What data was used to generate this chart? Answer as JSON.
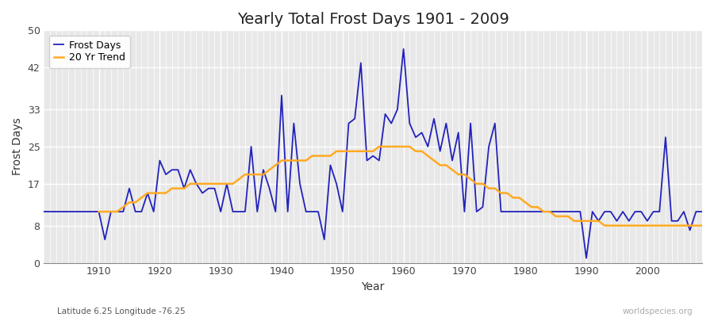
{
  "title": "Yearly Total Frost Days 1901 - 2009",
  "xlabel": "Year",
  "ylabel": "Frost Days",
  "bottom_left_label": "Latitude 6.25 Longitude -76.25",
  "bottom_right_label": "worldspecies.org",
  "ylim": [
    0,
    50
  ],
  "yticks": [
    0,
    8,
    17,
    25,
    33,
    42,
    50
  ],
  "xlim": [
    1901,
    2009
  ],
  "bg_color": "#e8e8e8",
  "fig_color": "#ffffff",
  "line_color_frost": "#2222bb",
  "line_color_trend": "#ffaa22",
  "years": [
    1901,
    1902,
    1903,
    1904,
    1905,
    1906,
    1907,
    1908,
    1909,
    1910,
    1911,
    1912,
    1913,
    1914,
    1915,
    1916,
    1917,
    1918,
    1919,
    1920,
    1921,
    1922,
    1923,
    1924,
    1925,
    1926,
    1927,
    1928,
    1929,
    1930,
    1931,
    1932,
    1933,
    1934,
    1935,
    1936,
    1937,
    1938,
    1939,
    1940,
    1941,
    1942,
    1943,
    1944,
    1945,
    1946,
    1947,
    1948,
    1949,
    1950,
    1951,
    1952,
    1953,
    1954,
    1955,
    1956,
    1957,
    1958,
    1959,
    1960,
    1961,
    1962,
    1963,
    1964,
    1965,
    1966,
    1967,
    1968,
    1969,
    1970,
    1971,
    1972,
    1973,
    1974,
    1975,
    1976,
    1977,
    1978,
    1979,
    1980,
    1981,
    1982,
    1983,
    1984,
    1985,
    1986,
    1987,
    1988,
    1989,
    1990,
    1991,
    1992,
    1993,
    1994,
    1995,
    1996,
    1997,
    1998,
    1999,
    2000,
    2001,
    2002,
    2003,
    2004,
    2005,
    2006,
    2007,
    2008,
    2009
  ],
  "frost_days": [
    11,
    11,
    11,
    11,
    11,
    11,
    11,
    11,
    11,
    11,
    5,
    11,
    11,
    11,
    16,
    11,
    11,
    15,
    11,
    22,
    19,
    20,
    20,
    16,
    20,
    17,
    15,
    16,
    16,
    11,
    17,
    11,
    11,
    11,
    25,
    11,
    20,
    16,
    11,
    36,
    11,
    30,
    17,
    11,
    11,
    11,
    5,
    21,
    17,
    11,
    30,
    31,
    43,
    22,
    23,
    22,
    32,
    30,
    33,
    46,
    30,
    27,
    28,
    25,
    31,
    24,
    30,
    22,
    28,
    11,
    30,
    11,
    12,
    25,
    30,
    11,
    11,
    11,
    11,
    11,
    11,
    11,
    11,
    11,
    11,
    11,
    11,
    11,
    11,
    1,
    11,
    9,
    11,
    11,
    9,
    11,
    9,
    11,
    11,
    9,
    11,
    11,
    27,
    9,
    9,
    11,
    7,
    11,
    11
  ],
  "trend_years": [
    1910,
    1911,
    1912,
    1913,
    1914,
    1915,
    1916,
    1917,
    1918,
    1919,
    1920,
    1921,
    1922,
    1923,
    1924,
    1925,
    1926,
    1927,
    1928,
    1929,
    1930,
    1931,
    1932,
    1933,
    1934,
    1935,
    1936,
    1937,
    1938,
    1939,
    1940,
    1941,
    1942,
    1943,
    1944,
    1945,
    1946,
    1947,
    1948,
    1949,
    1950,
    1951,
    1952,
    1953,
    1954,
    1955,
    1956,
    1957,
    1958,
    1959,
    1960,
    1961,
    1962,
    1963,
    1964,
    1965,
    1966,
    1967,
    1968,
    1969,
    1970,
    1971,
    1972,
    1973,
    1974,
    1975,
    1976,
    1977,
    1978,
    1979,
    1980,
    1981,
    1982,
    1983,
    1984,
    1985,
    1986,
    1987,
    1988,
    1989,
    1990,
    1991,
    1992,
    1993,
    1994,
    1995,
    1996,
    1997,
    1998,
    1999,
    2000,
    2001,
    2002,
    2003,
    2004,
    2005,
    2006,
    2007,
    2008,
    2009
  ],
  "trend_values": [
    11,
    11,
    11,
    11,
    12,
    13,
    13,
    14,
    15,
    15,
    15,
    15,
    16,
    16,
    16,
    17,
    17,
    17,
    17,
    17,
    17,
    17,
    17,
    18,
    19,
    19,
    19,
    19,
    20,
    21,
    22,
    22,
    22,
    22,
    22,
    23,
    23,
    23,
    23,
    24,
    24,
    24,
    24,
    24,
    24,
    24,
    25,
    25,
    25,
    25,
    25,
    25,
    24,
    24,
    23,
    22,
    21,
    21,
    20,
    19,
    19,
    18,
    17,
    17,
    16,
    16,
    15,
    15,
    14,
    14,
    13,
    12,
    12,
    11,
    11,
    10,
    10,
    10,
    9,
    9,
    9,
    9,
    9,
    8,
    8,
    8,
    8,
    8,
    8,
    8,
    8,
    8,
    8,
    8,
    8,
    8,
    8,
    8,
    8,
    8
  ],
  "title_fontsize": 14,
  "axis_label_fontsize": 10,
  "tick_fontsize": 9,
  "legend_fontsize": 9,
  "grid_color": "#ffffff",
  "grid_lw_major": 1.0,
  "grid_lw_minor": 0.5,
  "frost_lw": 1.3,
  "trend_lw": 1.8
}
